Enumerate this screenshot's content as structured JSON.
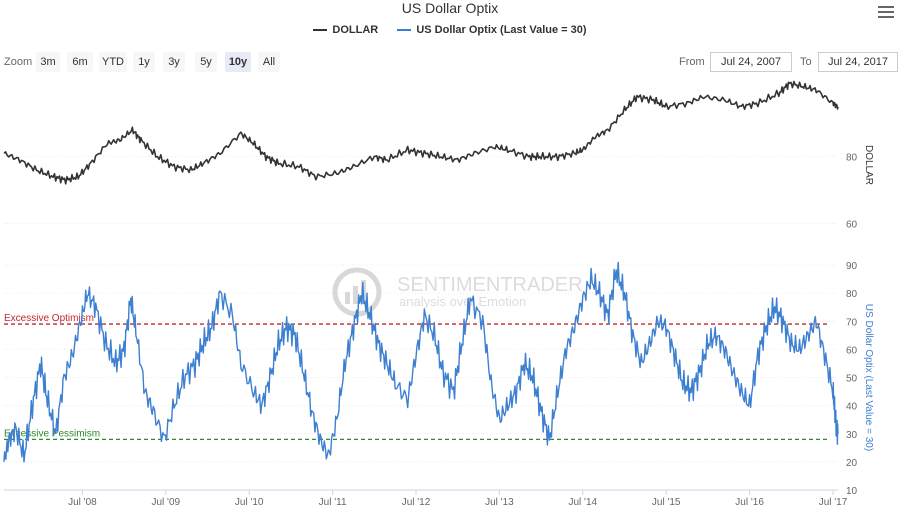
{
  "title": "US Dollar Optix",
  "legend": [
    {
      "name": "DOLLAR",
      "color": "#333333"
    },
    {
      "name": "US Dollar Optix (Last Value = 30)",
      "color": "#3d7fd1"
    }
  ],
  "zoom": {
    "label": "Zoom",
    "buttons": [
      "3m",
      "6m",
      "YTD",
      "1y",
      "3y",
      "5y",
      "10y",
      "All"
    ],
    "active": "10y"
  },
  "range": {
    "from_label": "From",
    "from_value": "Jul 24, 2007",
    "to_label": "To",
    "to_value": "Jul 24, 2017"
  },
  "watermark": {
    "brand": "SENTIMENTRADER",
    "tagline": "analysis over Emotion"
  },
  "chart_data": [
    {
      "type": "line",
      "series": [
        {
          "name": "DOLLAR",
          "color": "#333333",
          "x": [
            2007.56,
            2007.75,
            2007.95,
            2008.15,
            2008.3,
            2008.45,
            2008.6,
            2008.8,
            2008.95,
            2009.1,
            2009.2,
            2009.4,
            2009.6,
            2009.8,
            2009.95,
            2010.15,
            2010.4,
            2010.55,
            2010.7,
            2010.85,
            2011.1,
            2011.3,
            2011.55,
            2011.75,
            2012.0,
            2012.15,
            2012.4,
            2012.6,
            2012.8,
            2013.0,
            2013.2,
            2013.45,
            2013.6,
            2013.85,
            2014.0,
            2014.2,
            2014.4,
            2014.5,
            2014.65,
            2014.8,
            2015.0,
            2015.15,
            2015.35,
            2015.5,
            2015.75,
            2015.95,
            2016.2,
            2016.4,
            2016.6,
            2016.85,
            2016.98,
            2017.15,
            2017.3,
            2017.5,
            2017.56
          ],
          "y": [
            81,
            79,
            76,
            74,
            73,
            74,
            78,
            84,
            85,
            88,
            85,
            80,
            77,
            76,
            78,
            81,
            87,
            84,
            80,
            78,
            77,
            74,
            75,
            77,
            80,
            79,
            82,
            81,
            80,
            79,
            81,
            83,
            82,
            80,
            80,
            80,
            81,
            82,
            86,
            88,
            94,
            98,
            97,
            95,
            96,
            98,
            97,
            95,
            96,
            99,
            102,
            101,
            100,
            96,
            95
          ]
        }
      ],
      "yaxis_title": "DOLLAR",
      "yticks": [
        60,
        80
      ],
      "ylim": [
        55,
        100
      ]
    },
    {
      "type": "line",
      "series": [
        {
          "name": "US Dollar Optix (Last Value = 30)",
          "color": "#3d7fd1",
          "x": [
            2007.56,
            2007.62,
            2007.7,
            2007.8,
            2007.9,
            2008.0,
            2008.08,
            2008.18,
            2008.28,
            2008.38,
            2008.48,
            2008.56,
            2008.66,
            2008.78,
            2008.9,
            2009.0,
            2009.08,
            2009.15,
            2009.25,
            2009.35,
            2009.48,
            2009.6,
            2009.72,
            2009.85,
            2009.95,
            2010.05,
            2010.15,
            2010.3,
            2010.4,
            2010.55,
            2010.65,
            2010.75,
            2010.85,
            2010.95,
            2011.05,
            2011.15,
            2011.25,
            2011.35,
            2011.45,
            2011.55,
            2011.65,
            2011.75,
            2011.85,
            2011.95,
            2012.05,
            2012.15,
            2012.25,
            2012.4,
            2012.5,
            2012.6,
            2012.72,
            2012.82,
            2012.95,
            2013.05,
            2013.15,
            2013.3,
            2013.4,
            2013.5,
            2013.6,
            2013.7,
            2013.8,
            2013.9,
            2014.0,
            2014.1,
            2014.2,
            2014.3,
            2014.4,
            2014.5,
            2014.6,
            2014.7,
            2014.8,
            2014.9,
            2015.0,
            2015.1,
            2015.2,
            2015.3,
            2015.4,
            2015.5,
            2015.6,
            2015.7,
            2015.8,
            2015.9,
            2016.0,
            2016.1,
            2016.2,
            2016.3,
            2016.4,
            2016.5,
            2016.6,
            2016.7,
            2016.8,
            2016.9,
            2017.0,
            2017.1,
            2017.2,
            2017.3,
            2017.4,
            2017.5,
            2017.53,
            2017.56
          ],
          "y": [
            20,
            28,
            32,
            22,
            40,
            55,
            42,
            30,
            50,
            58,
            70,
            80,
            75,
            62,
            55,
            60,
            78,
            65,
            45,
            38,
            28,
            40,
            50,
            55,
            62,
            68,
            80,
            72,
            55,
            45,
            40,
            50,
            62,
            68,
            65,
            52,
            38,
            28,
            22,
            35,
            55,
            68,
            80,
            72,
            62,
            55,
            48,
            42,
            58,
            72,
            65,
            52,
            45,
            62,
            78,
            70,
            48,
            35,
            40,
            45,
            55,
            50,
            38,
            28,
            45,
            60,
            68,
            78,
            85,
            80,
            72,
            88,
            80,
            65,
            55,
            62,
            70,
            68,
            58,
            48,
            45,
            52,
            62,
            65,
            60,
            52,
            45,
            40,
            58,
            68,
            75,
            70,
            62,
            60,
            65,
            70,
            58,
            45,
            35,
            30
          ]
        }
      ],
      "yaxis_title": "US Dollar Optix (Last Value = 30)",
      "yticks": [
        10,
        20,
        30,
        40,
        50,
        60,
        70,
        80,
        90
      ],
      "ylim": [
        10,
        90
      ],
      "annotations": [
        {
          "label": "Excessive Optimism",
          "value": 69,
          "color": "#c0282d"
        },
        {
          "label": "Excessive Pessimism",
          "value": 28,
          "color": "#2e8b2e"
        }
      ]
    }
  ],
  "xaxis": {
    "ticks": [
      {
        "label": "Jul '08",
        "x": 2008.5
      },
      {
        "label": "Jul '09",
        "x": 2009.5
      },
      {
        "label": "Jul '10",
        "x": 2010.5
      },
      {
        "label": "Jul '11",
        "x": 2011.5
      },
      {
        "label": "Jul '12",
        "x": 2012.5
      },
      {
        "label": "Jul '13",
        "x": 2013.5
      },
      {
        "label": "Jul '14",
        "x": 2014.5
      },
      {
        "label": "Jul '15",
        "x": 2015.5
      },
      {
        "label": "Jul '16",
        "x": 2016.5
      },
      {
        "label": "Jul '17",
        "x": 2017.5
      }
    ],
    "xlim": [
      2007.56,
      2017.56
    ]
  }
}
